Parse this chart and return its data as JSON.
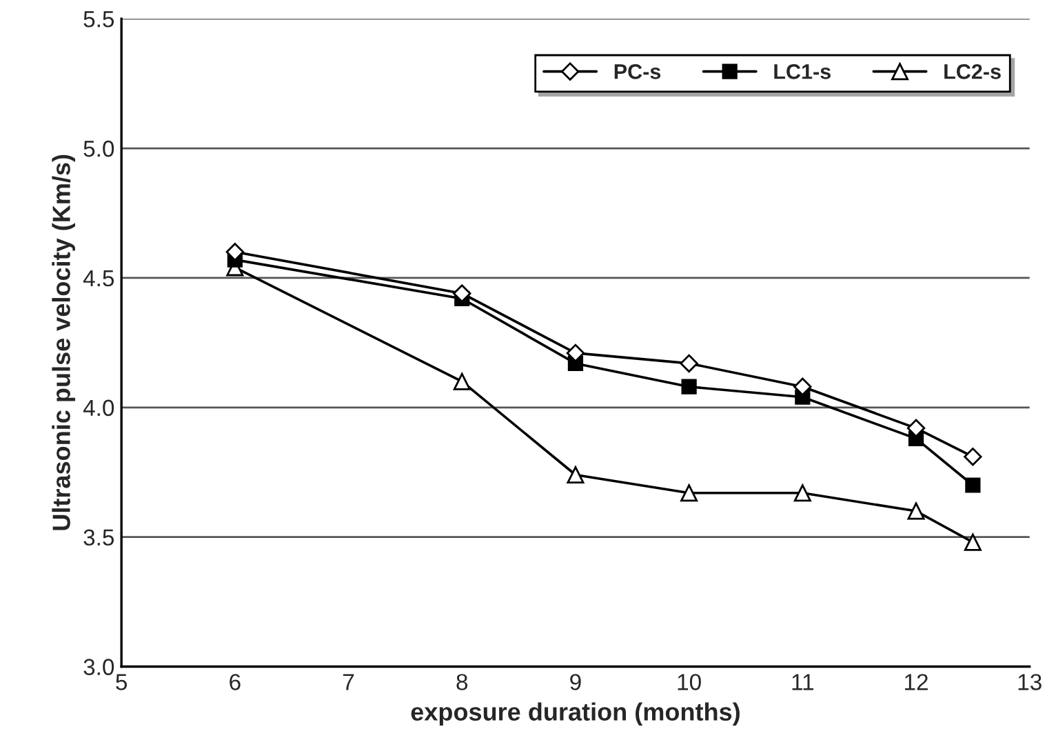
{
  "chart_data": {
    "type": "line",
    "xlabel": "exposure duration (months)",
    "ylabel": "Ultrasonic pulse velocity (Km/s)",
    "x": [
      6,
      8,
      9,
      10,
      11,
      12,
      12.5
    ],
    "series": [
      {
        "name": "PC-s",
        "color": "#000000",
        "marker": "diamond",
        "values": [
          4.6,
          4.44,
          4.21,
          4.17,
          4.08,
          3.92,
          3.81
        ]
      },
      {
        "name": "LC1-s",
        "color": "#000000",
        "marker": "square",
        "values": [
          4.57,
          4.42,
          4.17,
          4.08,
          4.04,
          3.88,
          3.7
        ]
      },
      {
        "name": "LC2-s",
        "color": "#000000",
        "marker": "triangle",
        "values": [
          4.54,
          4.1,
          3.74,
          3.67,
          3.67,
          3.6,
          3.48
        ]
      }
    ],
    "xlim": [
      5,
      13
    ],
    "xticks": [
      5,
      6,
      7,
      8,
      9,
      10,
      11,
      12,
      13
    ],
    "ylim": [
      3.0,
      5.5
    ],
    "yticks": [
      {
        "value": 3.0,
        "label": "3.0"
      },
      {
        "value": 3.5,
        "label": "3.5"
      },
      {
        "value": 4.0,
        "label": "4.0"
      },
      {
        "value": 4.5,
        "label": "4.5"
      },
      {
        "value": 5.0,
        "label": "5.0"
      },
      {
        "value": 5.5,
        "label": "5.5"
      }
    ],
    "grid": "y",
    "legend": "top right",
    "line_style": "solid"
  }
}
